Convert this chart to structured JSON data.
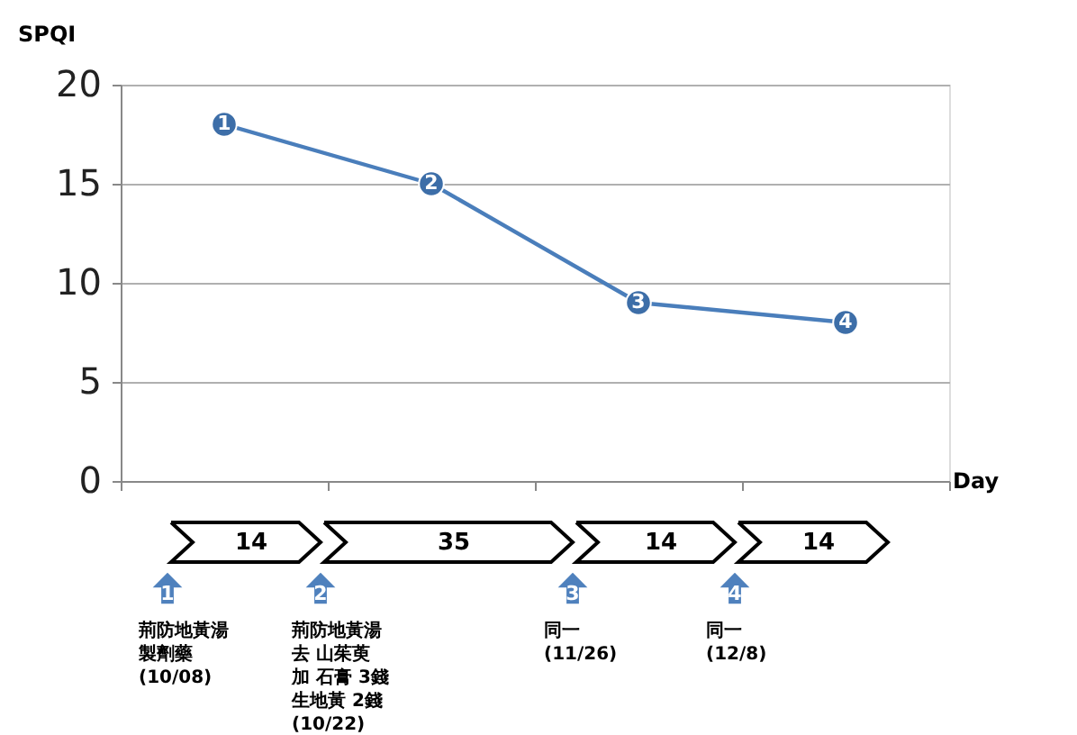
{
  "chart_data": {
    "type": "line",
    "xlabel": "Day",
    "ylabel": "SPQI",
    "categories": [
      null,
      null,
      null,
      null
    ],
    "values": [
      18,
      15,
      9,
      8
    ],
    "color": "#4a7ebb",
    "marker": "circle",
    "line_style": "solid",
    "ylim": [
      0,
      20
    ],
    "yticks": [
      0,
      5,
      10,
      15,
      20
    ],
    "grid": "y",
    "annotations": [
      {
        "text": "1",
        "y": 18
      },
      {
        "text": "2",
        "y": 15
      },
      {
        "text": "3",
        "y": 9
      },
      {
        "text": "4",
        "y": 8
      },
      "14",
      "35",
      "14",
      "14",
      "1",
      "2",
      "3",
      "4",
      "荊防地黃湯",
      "製劑藥",
      "(10/08)",
      "荊防地黃湯",
      "去 山茱萸",
      "加 石膏 3錢",
      "生地黃 2錢",
      "(10/22)",
      "同一",
      "(11/26)",
      "同一",
      "(12/8)"
    ]
  }
}
